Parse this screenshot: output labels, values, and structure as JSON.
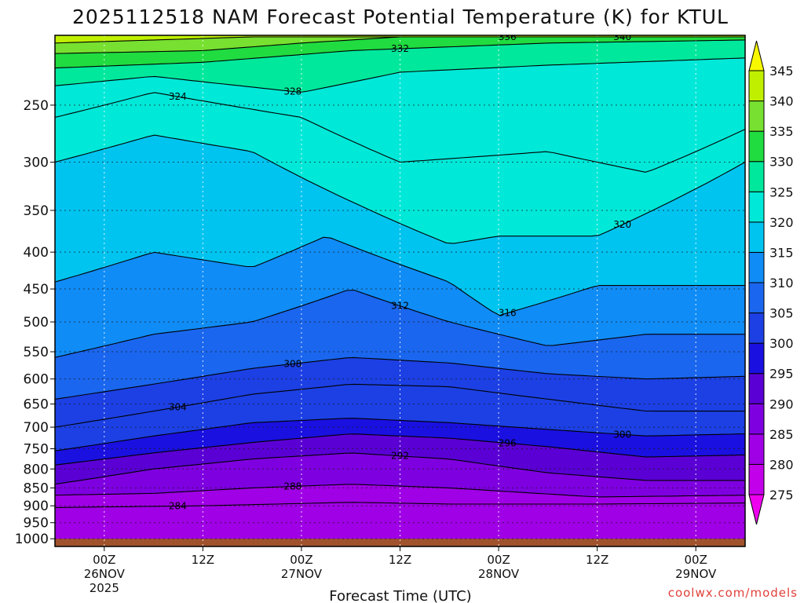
{
  "title": "2025112518 NAM Forecast Potential Temperature (K) for KTUL",
  "watermark": "coolwx.com/models",
  "chart_data": {
    "type": "heatmap",
    "title": "2025112518 NAM Forecast Potential Temperature (K) for KTUL",
    "xlabel": "Forecast Time (UTC)",
    "ylabel": "",
    "y_axis": {
      "quantity": "pressure (hPa)",
      "reversed": true,
      "ticks": [
        250,
        300,
        350,
        400,
        450,
        500,
        550,
        600,
        650,
        700,
        750,
        800,
        850,
        900,
        950,
        1000
      ],
      "top": 200,
      "bottom": 1025
    },
    "x_axis": {
      "start": "2025-11-25T18Z",
      "end": "2025-11-29T06Z",
      "ticks": [
        {
          "t": "2025-11-26T00Z",
          "line1": "00Z",
          "line2": "26NOV",
          "line3": "2025"
        },
        {
          "t": "2025-11-26T12Z",
          "line1": "12Z",
          "line2": "",
          "line3": ""
        },
        {
          "t": "2025-11-27T00Z",
          "line1": "00Z",
          "line2": "27NOV",
          "line3": ""
        },
        {
          "t": "2025-11-27T12Z",
          "line1": "12Z",
          "line2": "",
          "line3": ""
        },
        {
          "t": "2025-11-28T00Z",
          "line1": "00Z",
          "line2": "28NOV",
          "line3": ""
        },
        {
          "t": "2025-11-28T12Z",
          "line1": "12Z",
          "line2": "",
          "line3": ""
        },
        {
          "t": "2025-11-29T00Z",
          "line1": "00Z",
          "line2": "29NOV",
          "line3": ""
        }
      ]
    },
    "grid": true,
    "colorbar": {
      "levels": [
        275,
        280,
        285,
        290,
        295,
        300,
        305,
        310,
        315,
        320,
        325,
        330,
        335,
        340,
        345
      ],
      "colors": [
        "#ee00ee",
        "#c300ea",
        "#a000e6",
        "#7e00e0",
        "#5a00d4",
        "#1a10e0",
        "#1c40e4",
        "#1a66ee",
        "#108cf6",
        "#00c4f0",
        "#00e8d8",
        "#00e89c",
        "#20dc40",
        "#78e030",
        "#c0f000",
        "#f8f800"
      ]
    },
    "series": [
      {
        "value": 284,
        "label": "284",
        "points": [
          [
            "2025-11-25T18Z",
            905
          ],
          [
            "2025-11-26T12Z",
            900
          ],
          [
            "2025-11-27T06Z",
            890
          ],
          [
            "2025-11-27T18Z",
            895
          ],
          [
            "2025-11-28T12Z",
            895
          ],
          [
            "2025-11-29T06Z",
            892
          ]
        ]
      },
      {
        "value": 288,
        "label": "288",
        "points": [
          [
            "2025-11-25T18Z",
            870
          ],
          [
            "2025-11-26T06Z",
            865
          ],
          [
            "2025-11-26T18Z",
            850
          ],
          [
            "2025-11-27T06Z",
            840
          ],
          [
            "2025-11-27T18Z",
            850
          ],
          [
            "2025-11-28T12Z",
            875
          ],
          [
            "2025-11-29T06Z",
            870
          ]
        ]
      },
      {
        "value": 292,
        "label": "292",
        "points": [
          [
            "2025-11-25T18Z",
            840
          ],
          [
            "2025-11-26T06Z",
            800
          ],
          [
            "2025-11-26T18Z",
            775
          ],
          [
            "2025-11-27T06Z",
            760
          ],
          [
            "2025-11-27T18Z",
            775
          ],
          [
            "2025-11-28T06Z",
            810
          ],
          [
            "2025-11-28T18Z",
            830
          ],
          [
            "2025-11-29T06Z",
            830
          ]
        ]
      },
      {
        "value": 296,
        "label": "296",
        "points": [
          [
            "2025-11-25T18Z",
            790
          ],
          [
            "2025-11-26T06Z",
            760
          ],
          [
            "2025-11-26T18Z",
            735
          ],
          [
            "2025-11-27T06Z",
            715
          ],
          [
            "2025-11-27T18Z",
            725
          ],
          [
            "2025-11-28T06Z",
            745
          ],
          [
            "2025-11-28T18Z",
            770
          ],
          [
            "2025-11-29T06Z",
            765
          ]
        ]
      },
      {
        "value": 300,
        "label": "300",
        "points": [
          [
            "2025-11-25T18Z",
            755
          ],
          [
            "2025-11-26T06Z",
            720
          ],
          [
            "2025-11-26T18Z",
            690
          ],
          [
            "2025-11-27T06Z",
            680
          ],
          [
            "2025-11-27T18Z",
            690
          ],
          [
            "2025-11-28T06Z",
            705
          ],
          [
            "2025-11-28T18Z",
            720
          ],
          [
            "2025-11-29T06Z",
            715
          ]
        ]
      },
      {
        "value": 304,
        "label": "304",
        "points": [
          [
            "2025-11-25T18Z",
            700
          ],
          [
            "2025-11-26T06Z",
            665
          ],
          [
            "2025-11-26T18Z",
            630
          ],
          [
            "2025-11-27T06Z",
            610
          ],
          [
            "2025-11-27T18Z",
            615
          ],
          [
            "2025-11-28T06Z",
            640
          ],
          [
            "2025-11-28T18Z",
            665
          ],
          [
            "2025-11-29T06Z",
            665
          ]
        ]
      },
      {
        "value": 308,
        "label": "308",
        "points": [
          [
            "2025-11-25T18Z",
            640
          ],
          [
            "2025-11-26T06Z",
            610
          ],
          [
            "2025-11-26T18Z",
            580
          ],
          [
            "2025-11-27T06Z",
            560
          ],
          [
            "2025-11-27T18Z",
            570
          ],
          [
            "2025-11-28T06Z",
            590
          ],
          [
            "2025-11-28T18Z",
            600
          ],
          [
            "2025-11-29T06Z",
            595
          ]
        ]
      },
      {
        "value": 312,
        "label": "312",
        "points": [
          [
            "2025-11-25T18Z",
            560
          ],
          [
            "2025-11-26T06Z",
            520
          ],
          [
            "2025-11-26T18Z",
            500
          ],
          [
            "2025-11-27T06Z",
            450
          ],
          [
            "2025-11-27T18Z",
            500
          ],
          [
            "2025-11-28T06Z",
            540
          ],
          [
            "2025-11-28T18Z",
            520
          ],
          [
            "2025-11-29T06Z",
            520
          ]
        ]
      },
      {
        "value": 316,
        "label": "316",
        "points": [
          [
            "2025-11-25T18Z",
            440
          ],
          [
            "2025-11-26T06Z",
            400
          ],
          [
            "2025-11-26T18Z",
            420
          ],
          [
            "2025-11-27T03Z",
            380
          ],
          [
            "2025-11-27T18Z",
            440
          ],
          [
            "2025-11-28T00Z",
            490
          ],
          [
            "2025-11-28T12Z",
            445
          ],
          [
            "2025-11-29T06Z",
            445
          ]
        ]
      },
      {
        "value": 320,
        "label": "320",
        "points": [
          [
            "2025-11-25T18Z",
            300
          ],
          [
            "2025-11-26T06Z",
            275
          ],
          [
            "2025-11-26T18Z",
            290
          ],
          [
            "2025-11-27T06Z",
            340
          ],
          [
            "2025-11-27T18Z",
            390
          ],
          [
            "2025-11-28T00Z",
            380
          ],
          [
            "2025-11-28T12Z",
            380
          ],
          [
            "2025-11-29T06Z",
            300
          ]
        ]
      },
      {
        "value": 324,
        "label": "324",
        "points": [
          [
            "2025-11-25T18Z",
            260
          ],
          [
            "2025-11-26T06Z",
            240
          ],
          [
            "2025-11-27T00Z",
            260
          ],
          [
            "2025-11-27T12Z",
            300
          ],
          [
            "2025-11-28T06Z",
            290
          ],
          [
            "2025-11-28T18Z",
            310
          ],
          [
            "2025-11-29T06Z",
            270
          ]
        ]
      },
      {
        "value": 328,
        "label": "328",
        "points": [
          [
            "2025-11-25T18Z",
            235
          ],
          [
            "2025-11-26T06Z",
            228
          ],
          [
            "2025-11-27T00Z",
            240
          ],
          [
            "2025-11-27T12Z",
            225
          ],
          [
            "2025-11-28T06Z",
            220
          ],
          [
            "2025-11-29T06Z",
            215
          ]
        ]
      },
      {
        "value": 332,
        "label": "332",
        "points": [
          [
            "2025-11-25T18Z",
            222
          ],
          [
            "2025-11-26T12Z",
            218
          ],
          [
            "2025-11-27T06Z",
            210
          ],
          [
            "2025-11-28T06Z",
            205
          ],
          [
            "2025-11-29T06Z",
            203
          ]
        ]
      },
      {
        "value": 336,
        "label": "336",
        "points": [
          [
            "2025-11-25T18Z",
            212
          ],
          [
            "2025-11-26T12Z",
            210
          ],
          [
            "2025-11-27T00Z",
            205
          ],
          [
            "2025-11-27T12Z",
            201
          ]
        ]
      },
      {
        "value": 340,
        "label": "340",
        "points": [
          [
            "2025-11-25T18Z",
            205
          ],
          [
            "2025-11-26T06Z",
            203
          ],
          [
            "2025-11-26T18Z",
            201
          ]
        ]
      }
    ]
  }
}
